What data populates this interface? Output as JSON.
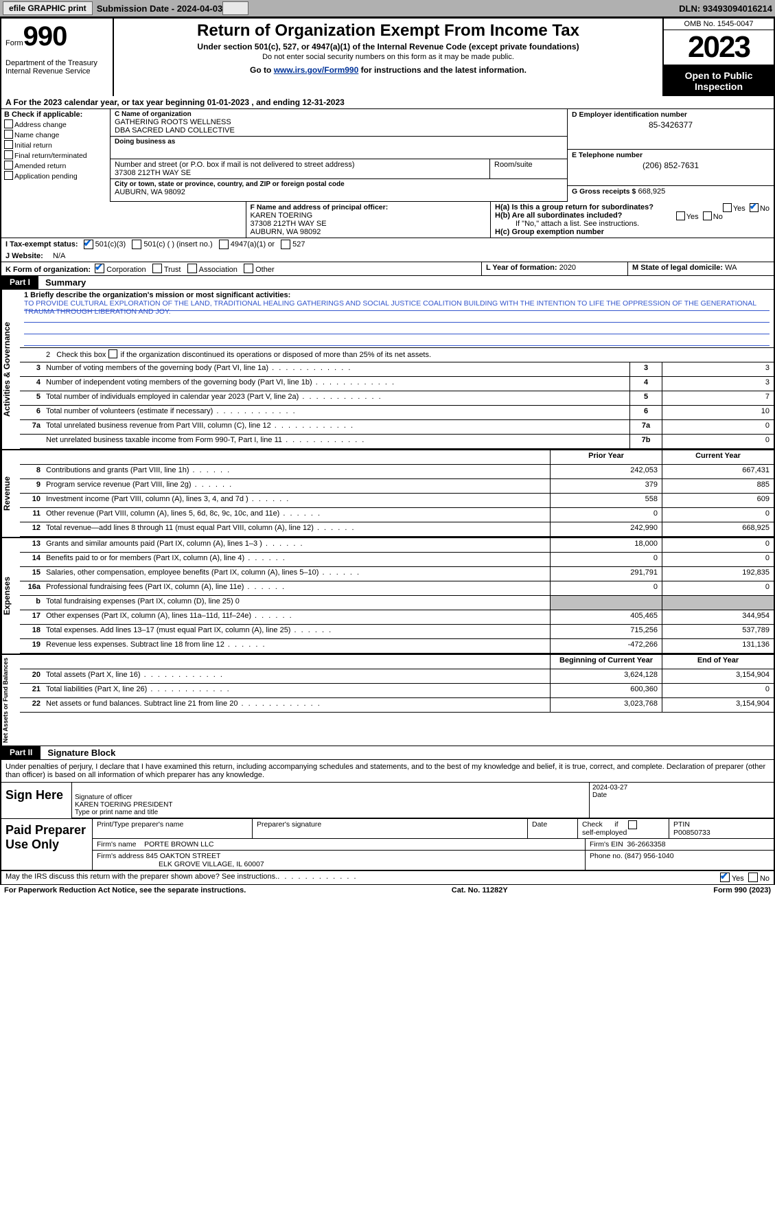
{
  "topbar": {
    "efile_label": "efile GRAPHIC print",
    "submission_label": "Submission Date - 2024-04-03",
    "dln_label": "DLN: 93493094016214"
  },
  "header": {
    "form_prefix": "Form",
    "form_number": "990",
    "title": "Return of Organization Exempt From Income Tax",
    "subtitle": "Under section 501(c), 527, or 4947(a)(1) of the Internal Revenue Code (except private foundations)",
    "note": "Do not enter social security numbers on this form as it may be made public.",
    "goto_prefix": "Go to ",
    "goto_link": "www.irs.gov/Form990",
    "goto_suffix": " for instructions and the latest information.",
    "dept": "Department of the Treasury\nInternal Revenue Service",
    "omb": "OMB No. 1545-0047",
    "year": "2023",
    "public": "Open to Public Inspection"
  },
  "taxyear": {
    "text_a": "A For the 2023 calendar year, or tax year beginning ",
    "begin": "01-01-2023",
    "text_b": " , and ending ",
    "end": "12-31-2023"
  },
  "boxB": {
    "header": "B Check if applicable:",
    "items": [
      "Address change",
      "Name change",
      "Initial return",
      "Final return/terminated",
      "Amended return",
      "Application pending"
    ]
  },
  "boxC": {
    "name_label": "C Name of organization",
    "name": "GATHERING ROOTS WELLNESS\nDBA SACRED LAND COLLECTIVE",
    "dba_label": "Doing business as",
    "street_label": "Number and street (or P.O. box if mail is not delivered to street address)",
    "street": "37308 212TH WAY SE",
    "room_label": "Room/suite",
    "city_label": "City or town, state or province, country, and ZIP or foreign postal code",
    "city": "AUBURN, WA  98092"
  },
  "boxD": {
    "label": "D Employer identification number",
    "value": "85-3426377"
  },
  "boxE": {
    "label": "E Telephone number",
    "value": "(206) 852-7631"
  },
  "boxG": {
    "label": "G Gross receipts $",
    "value": "668,925"
  },
  "boxF": {
    "label": "F Name and address of principal officer:",
    "name": "KAREN TOERING",
    "street": "37308 212TH WAY SE",
    "city": "AUBURN, WA  98092"
  },
  "boxH": {
    "a_label": "H(a)  Is this a group return for subordinates?",
    "a_yes": "Yes",
    "a_no": "No",
    "b_label": "H(b)  Are all subordinates included?",
    "b_note": "If \"No,\" attach a list. See instructions.",
    "c_label": "H(c)  Group exemption number"
  },
  "boxI": {
    "label": "I   Tax-exempt status:",
    "opts": [
      "501(c)(3)",
      "501(c) (  ) (insert no.)",
      "4947(a)(1) or",
      "527"
    ]
  },
  "boxJ": {
    "label": "J   Website:",
    "value": "N/A"
  },
  "boxK": {
    "label": "K Form of organization:",
    "opts": [
      "Corporation",
      "Trust",
      "Association",
      "Other"
    ]
  },
  "boxL": {
    "label": "L Year of formation:",
    "value": "2020"
  },
  "boxM": {
    "label": "M State of legal domicile:",
    "value": "WA"
  },
  "part1": {
    "tag": "Part I",
    "title": "Summary"
  },
  "mission": {
    "label": "1   Briefly describe the organization's mission or most significant activities:",
    "text": "TO PROVIDE CULTURAL EXPLORATION OF THE LAND, TRADITIONAL HEALING GATHERINGS AND SOCIAL JUSTICE COALITION BUILDING WITH THE INTENTION TO LIFE THE OPPRESSION OF THE GENERATIONAL TRAUMA THROUGH LIBERATION AND JOY."
  },
  "line2": "2   Check this box    if the organization discontinued its operations or disposed of more than 25% of its net assets.",
  "governance_rows": [
    {
      "n": "3",
      "t": "Number of voting members of the governing body (Part VI, line 1a)",
      "box": "3",
      "v": "3"
    },
    {
      "n": "4",
      "t": "Number of independent voting members of the governing body (Part VI, line 1b)",
      "box": "4",
      "v": "3"
    },
    {
      "n": "5",
      "t": "Total number of individuals employed in calendar year 2023 (Part V, line 2a)",
      "box": "5",
      "v": "7"
    },
    {
      "n": "6",
      "t": "Total number of volunteers (estimate if necessary)",
      "box": "6",
      "v": "10"
    },
    {
      "n": "7a",
      "t": "Total unrelated business revenue from Part VIII, column (C), line 12",
      "box": "7a",
      "v": "0"
    },
    {
      "n": "",
      "t": "Net unrelated business taxable income from Form 990-T, Part I, line 11",
      "box": "7b",
      "v": "0"
    }
  ],
  "col_headers": {
    "prior": "Prior Year",
    "current": "Current Year"
  },
  "revenue_rows": [
    {
      "n": "8",
      "t": "Contributions and grants (Part VIII, line 1h)",
      "p": "242,053",
      "c": "667,431"
    },
    {
      "n": "9",
      "t": "Program service revenue (Part VIII, line 2g)",
      "p": "379",
      "c": "885"
    },
    {
      "n": "10",
      "t": "Investment income (Part VIII, column (A), lines 3, 4, and 7d )",
      "p": "558",
      "c": "609"
    },
    {
      "n": "11",
      "t": "Other revenue (Part VIII, column (A), lines 5, 6d, 8c, 9c, 10c, and 11e)",
      "p": "0",
      "c": "0"
    },
    {
      "n": "12",
      "t": "Total revenue—add lines 8 through 11 (must equal Part VIII, column (A), line 12)",
      "p": "242,990",
      "c": "668,925"
    }
  ],
  "expense_rows": [
    {
      "n": "13",
      "t": "Grants and similar amounts paid (Part IX, column (A), lines 1–3 )",
      "p": "18,000",
      "c": "0"
    },
    {
      "n": "14",
      "t": "Benefits paid to or for members (Part IX, column (A), line 4)",
      "p": "0",
      "c": "0"
    },
    {
      "n": "15",
      "t": "Salaries, other compensation, employee benefits (Part IX, column (A), lines 5–10)",
      "p": "291,791",
      "c": "192,835"
    },
    {
      "n": "16a",
      "t": "Professional fundraising fees (Part IX, column (A), line 11e)",
      "p": "0",
      "c": "0"
    },
    {
      "n": "b",
      "t": "Total fundraising expenses (Part IX, column (D), line 25) 0",
      "shade": true
    },
    {
      "n": "17",
      "t": "Other expenses (Part IX, column (A), lines 11a–11d, 11f–24e)",
      "p": "405,465",
      "c": "344,954"
    },
    {
      "n": "18",
      "t": "Total expenses. Add lines 13–17 (must equal Part IX, column (A), line 25)",
      "p": "715,256",
      "c": "537,789"
    },
    {
      "n": "19",
      "t": "Revenue less expenses. Subtract line 18 from line 12",
      "p": "-472,266",
      "c": "131,136"
    }
  ],
  "net_headers": {
    "begin": "Beginning of Current Year",
    "end": "End of Year"
  },
  "net_rows": [
    {
      "n": "20",
      "t": "Total assets (Part X, line 16)",
      "p": "3,624,128",
      "c": "3,154,904"
    },
    {
      "n": "21",
      "t": "Total liabilities (Part X, line 26)",
      "p": "600,360",
      "c": "0"
    },
    {
      "n": "22",
      "t": "Net assets or fund balances. Subtract line 21 from line 20",
      "p": "3,023,768",
      "c": "3,154,904"
    }
  ],
  "side_labels": {
    "gov": "Activities & Governance",
    "rev": "Revenue",
    "exp": "Expenses",
    "net": "Net Assets or Fund Balances"
  },
  "part2": {
    "tag": "Part II",
    "title": "Signature Block"
  },
  "perjury": "Under penalties of perjury, I declare that I have examined this return, including accompanying schedules and statements, and to the best of my knowledge and belief, it is true, correct, and complete. Declaration of preparer (other than officer) is based on all information of which preparer has any knowledge.",
  "sign": {
    "here": "Sign Here",
    "sig_label": "Signature of officer",
    "name": "KAREN TOERING  PRESIDENT",
    "name_label": "Type or print name and title",
    "date_label": "Date",
    "date": "2024-03-27"
  },
  "prep": {
    "label": "Paid Preparer Use Only",
    "print_label": "Print/Type preparer's name",
    "sig_label": "Preparer's signature",
    "date_label": "Date",
    "check_label": "Check          if self-employed",
    "ptin_label": "PTIN",
    "ptin": "P00850733",
    "firm_name_label": "Firm's name",
    "firm_name": "PORTE BROWN LLC",
    "firm_ein_label": "Firm's EIN",
    "firm_ein": "36-2663358",
    "firm_addr_label": "Firm's address",
    "firm_addr1": "845 OAKTON STREET",
    "firm_addr2": "ELK GROVE VILLAGE, IL  60007",
    "phone_label": "Phone no.",
    "phone": "(847) 956-1040"
  },
  "discuss": {
    "text": "May the IRS discuss this return with the preparer shown above? See instructions.",
    "yes": "Yes",
    "no": "No"
  },
  "footer": {
    "left": "For Paperwork Reduction Act Notice, see the separate instructions.",
    "mid": "Cat. No. 11282Y",
    "right": "Form 990 (2023)"
  }
}
